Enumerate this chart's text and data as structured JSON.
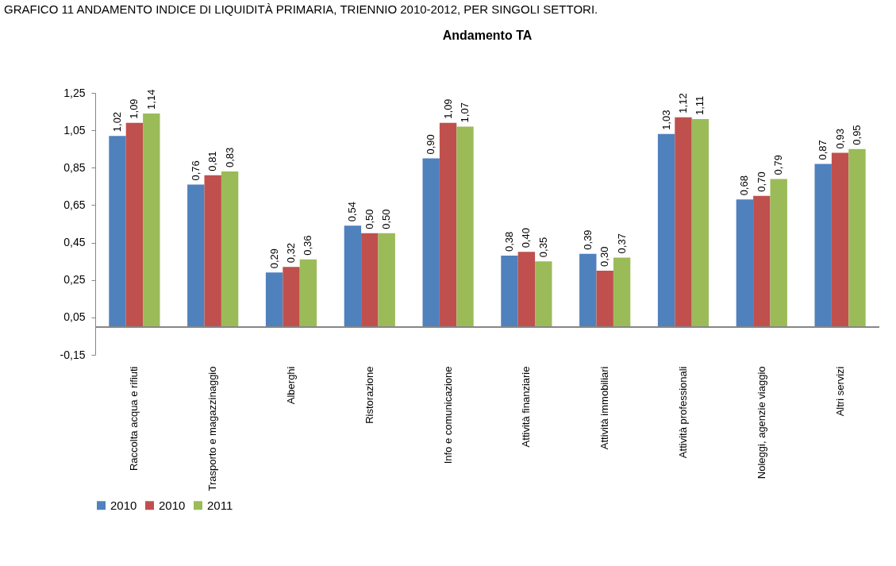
{
  "chart_data": {
    "type": "bar",
    "title": "Andamento TA",
    "annotations": [
      "GRAFICO 11 ANDAMENTO INDICE DI LIQUIDITÀ PRIMARIA, TRIENNIO 2010-2012, PER SINGOLI SETTORI."
    ],
    "categories": [
      "Raccolta acqua e rifiuti",
      "Trasporto e magazzinaggio",
      "Alberghi",
      "Ristorazione",
      "Info e comunicazione",
      "Attività finanziarie",
      "Attività immobiliari",
      "Attività professionali",
      "Noleggi, agenzie  viaggio",
      "Altri servizi"
    ],
    "series": [
      {
        "name": "2010",
        "color": "#4f81bd",
        "values": [
          1.02,
          0.76,
          0.29,
          0.54,
          0.9,
          0.38,
          0.39,
          1.03,
          0.68,
          0.87
        ],
        "value_labels": [
          "1,02",
          "0,76",
          "0,29",
          "0,54",
          "0,90",
          "0,38",
          "0,39",
          "1,03",
          "0,68",
          "0,87"
        ]
      },
      {
        "name": "2010",
        "color": "#c0504d",
        "values": [
          1.09,
          0.81,
          0.32,
          0.5,
          1.09,
          0.4,
          0.3,
          1.12,
          0.7,
          0.93
        ],
        "value_labels": [
          "1,09",
          "0,81",
          "0,32",
          "0,50",
          "1,09",
          "0,40",
          "0,30",
          "1,12",
          "0,70",
          "0,93"
        ]
      },
      {
        "name": "2011",
        "color": "#9bbb59",
        "values": [
          1.14,
          0.83,
          0.36,
          0.5,
          1.07,
          0.35,
          0.37,
          1.11,
          0.79,
          0.95
        ],
        "value_labels": [
          "1,14",
          "0,83",
          "0,36",
          "0,50",
          "1,07",
          "0,35",
          "0,37",
          "1,11",
          "0,79",
          "0,95"
        ]
      }
    ],
    "ylim": [
      -0.15,
      1.25
    ],
    "yticks": [
      {
        "value": -0.15,
        "label": "-0,15"
      },
      {
        "value": 0.05,
        "label": "0,05"
      },
      {
        "value": 0.25,
        "label": "0,25"
      },
      {
        "value": 0.45,
        "label": "0,45"
      },
      {
        "value": 0.65,
        "label": "0,65"
      },
      {
        "value": 0.85,
        "label": "0,85"
      },
      {
        "value": 1.05,
        "label": "1,05"
      },
      {
        "value": 1.25,
        "label": "1,25"
      }
    ],
    "grid": false,
    "legend": "bottom"
  }
}
